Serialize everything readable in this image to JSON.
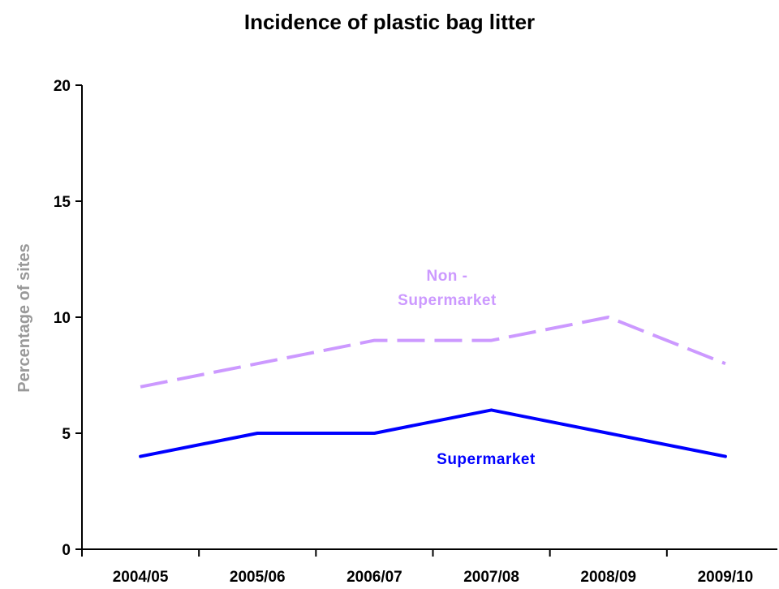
{
  "chart_data": {
    "type": "line",
    "title": "Incidence of plastic bag litter",
    "xlabel": "",
    "ylabel": "Percentage of sites",
    "categories": [
      "2004/05",
      "2005/06",
      "2006/07",
      "2007/08",
      "2008/09",
      "2009/10"
    ],
    "ylim": [
      0,
      20
    ],
    "yticks": [
      0,
      5,
      10,
      15,
      20
    ],
    "grid": false,
    "series": [
      {
        "name": "Supermarket",
        "values": [
          4,
          5,
          5,
          6,
          5,
          4
        ],
        "color": "#0000ff",
        "style": "solid"
      },
      {
        "name": "Non - Supermarket",
        "label_lines": [
          "Non -",
          "Supermarket"
        ],
        "values": [
          7,
          8,
          9,
          9,
          10,
          8
        ],
        "color": "#cc99ff",
        "style": "dashed"
      }
    ]
  }
}
